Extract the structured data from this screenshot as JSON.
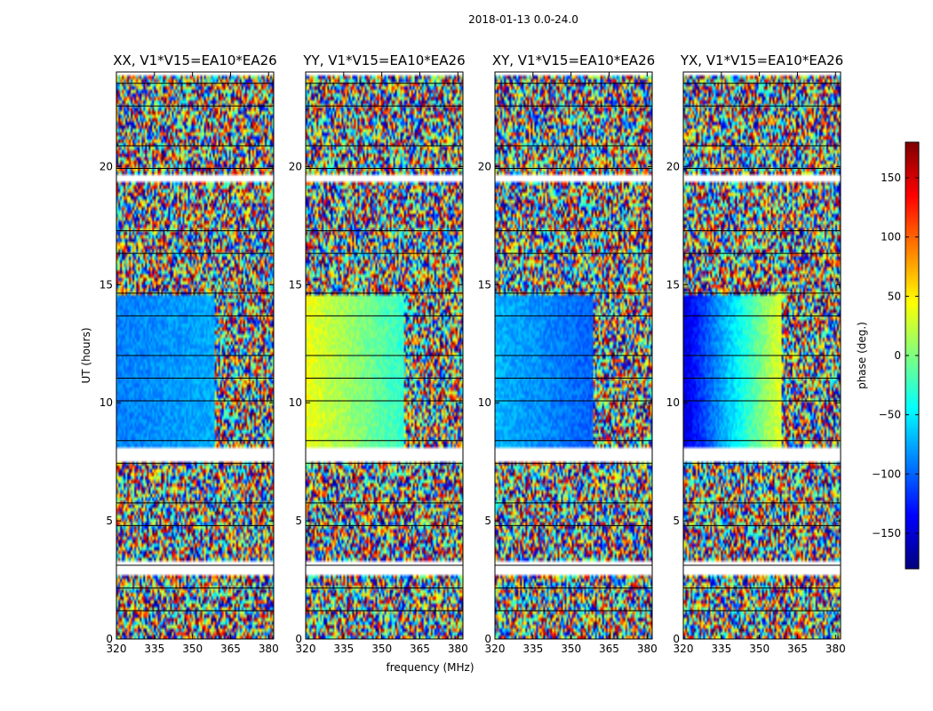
{
  "chart_data": {
    "type": "heatmap",
    "title": "2018-01-13 0.0-24.0",
    "xlabel": "frequency (MHz)",
    "ylabel": "UT (hours)",
    "xlim": [
      320,
      382
    ],
    "ylim": [
      0,
      24
    ],
    "xticks": [
      320,
      335,
      350,
      365,
      380
    ],
    "yticks": [
      0,
      5,
      10,
      15,
      20
    ],
    "colorbar": {
      "label": "phase (deg.)",
      "range": [
        -180,
        180
      ],
      "ticks": [
        -150,
        -100,
        -50,
        0,
        50,
        100,
        150
      ],
      "tick_labels": [
        "−150",
        "−100",
        "−50",
        "0",
        "50",
        "100",
        "150"
      ],
      "colormap": "jet"
    },
    "panels": [
      {
        "title": "XX, V1*V15=EA10*EA26",
        "band_phase_deg": -90,
        "band_gradient_deg": 25,
        "rfi_edge_mhz": 359
      },
      {
        "title": "YY, V1*V15=EA10*EA26",
        "band_phase_deg": 40,
        "band_gradient_deg": -110,
        "rfi_edge_mhz": 359
      },
      {
        "title": "XY, V1*V15=EA10*EA26",
        "band_phase_deg": -70,
        "band_gradient_deg": -50,
        "rfi_edge_mhz": 359
      },
      {
        "title": "YX, V1*V15=EA10*EA26",
        "band_phase_deg": -150,
        "band_gradient_deg": 300,
        "rfi_edge_mhz": 359
      }
    ],
    "coherent_band_ut": [
      8.0,
      14.6
    ],
    "flagged_ut_ranges": [
      [
        0.85,
        0.95
      ],
      [
        2.75,
        3.25
      ],
      [
        7.5,
        8.1
      ],
      [
        19.3,
        19.6
      ],
      [
        23.8,
        24.0
      ]
    ]
  }
}
